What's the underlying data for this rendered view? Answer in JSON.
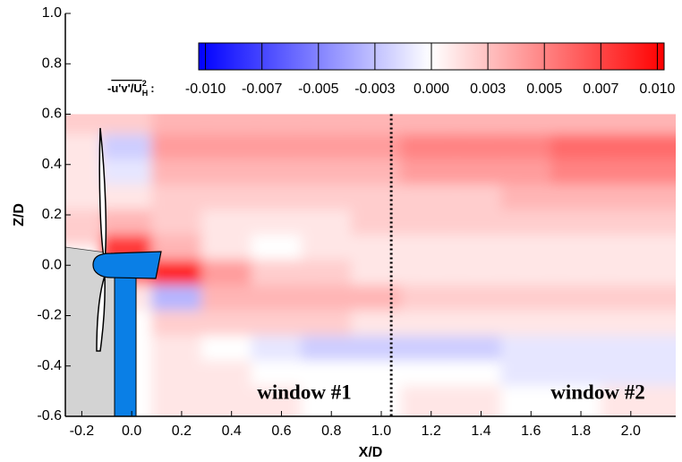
{
  "chart_data": {
    "type": "heatmap",
    "x_label": "X/D",
    "y_label": "Z/D",
    "xlim": [
      -0.266,
      2.18
    ],
    "ylim": [
      -0.6,
      1.0
    ],
    "xticks": [
      {
        "value": -0.2,
        "label": "-0.2"
      },
      {
        "value": 0,
        "label": "0.0"
      },
      {
        "value": 0.2,
        "label": "0.2"
      },
      {
        "value": 0.4,
        "label": "0.4"
      },
      {
        "value": 0.6,
        "label": "0.6"
      },
      {
        "value": 0.8,
        "label": "0.8"
      },
      {
        "value": 1.0,
        "label": "1.0"
      },
      {
        "value": 1.2,
        "label": "1.2"
      },
      {
        "value": 1.4,
        "label": "1.4"
      },
      {
        "value": 1.6,
        "label": "1.6"
      },
      {
        "value": 1.8,
        "label": "1.8"
      },
      {
        "value": 2.0,
        "label": "2.0"
      }
    ],
    "yticks": [
      {
        "value": -0.6,
        "label": "-0.6"
      },
      {
        "value": -0.4,
        "label": "-0.4"
      },
      {
        "value": -0.2,
        "label": "-0.2"
      },
      {
        "value": 0,
        "label": "0.0"
      },
      {
        "value": 0.2,
        "label": "0.2"
      },
      {
        "value": 0.4,
        "label": "0.4"
      },
      {
        "value": 0.6,
        "label": "0.6"
      },
      {
        "value": 0.8,
        "label": "0.8"
      },
      {
        "value": 1.0,
        "label": "1.0"
      }
    ],
    "field_ylim": [
      -0.6,
      0.6
    ],
    "colorbar_label": {
      "prefix": "-",
      "main": "u'v'/U",
      "sup": "2",
      "sub": "H",
      "suffix": ":"
    },
    "clim": [
      -0.0103,
      0.0103
    ],
    "colorbar_ticks": [
      {
        "value": -0.01,
        "label": "-0.010"
      },
      {
        "value": -0.0075,
        "label": "-0.007"
      },
      {
        "value": -0.005,
        "label": "-0.005"
      },
      {
        "value": -0.0025,
        "label": "-0.003"
      },
      {
        "value": 0,
        "label": "0.000"
      },
      {
        "value": 0.0025,
        "label": "0.003"
      },
      {
        "value": 0.005,
        "label": "0.005"
      },
      {
        "value": 0.0075,
        "label": "0.007"
      },
      {
        "value": 0.01,
        "label": "0.010"
      }
    ],
    "colors": {
      "low": "#0000ff",
      "mid": "#ffffff",
      "high": "#ff0000"
    },
    "divider_x": 1.04,
    "annotations": [
      "window #1",
      "window #2"
    ],
    "x": [
      -0.2,
      0.0,
      0.2,
      0.4,
      0.6,
      0.8,
      1.0,
      1.2,
      1.4,
      1.6,
      1.8,
      2.0
    ],
    "y": [
      0.55,
      0.45,
      0.35,
      0.25,
      0.15,
      0.05,
      -0.05,
      -0.15,
      -0.25,
      -0.35,
      -0.45,
      -0.55
    ],
    "z": [
      [
        0.002,
        0.002,
        0.003,
        0.003,
        0.003,
        0.003,
        0.003,
        0.003,
        0.003,
        0.003,
        0.003,
        0.003
      ],
      [
        0.001,
        -0.002,
        0.004,
        0.004,
        0.004,
        0.004,
        0.004,
        0.005,
        0.005,
        0.005,
        0.006,
        0.006
      ],
      [
        0.001,
        -0.001,
        0.003,
        0.003,
        0.003,
        0.003,
        0.003,
        0.004,
        0.004,
        0.004,
        0.005,
        0.005
      ],
      [
        0.001,
        0.001,
        0.002,
        0.002,
        0.002,
        0.002,
        0.002,
        0.002,
        0.002,
        0.003,
        0.003,
        0.003
      ],
      [
        0.002,
        0.003,
        0.002,
        0.001,
        0.001,
        0.001,
        0.002,
        0.002,
        0.002,
        0.002,
        0.002,
        0.002
      ],
      [
        null,
        0.008,
        0.003,
        0.001,
        0.0,
        0.001,
        0.001,
        0.001,
        0.001,
        0.001,
        0.001,
        0.001
      ],
      [
        null,
        0.006,
        0.009,
        0.004,
        0.002,
        0.002,
        0.001,
        0.001,
        0.001,
        0.001,
        0.001,
        0.001
      ],
      [
        null,
        0.001,
        -0.003,
        0.003,
        0.003,
        0.003,
        0.003,
        0.002,
        0.002,
        0.002,
        0.002,
        0.002
      ],
      [
        null,
        0.0,
        0.002,
        0.002,
        0.002,
        0.002,
        0.001,
        0.001,
        0.001,
        0.001,
        0.001,
        0.001
      ],
      [
        null,
        0.0,
        0.001,
        0.0,
        -0.001,
        -0.002,
        -0.002,
        -0.002,
        -0.002,
        -0.001,
        -0.001,
        -0.001
      ],
      [
        null,
        0.0,
        0.001,
        0.001,
        0.0,
        0.0,
        0.0,
        0.0,
        0.0,
        -0.001,
        -0.001,
        -0.001
      ],
      [
        null,
        0.0,
        0.001,
        0.001,
        0.001,
        0.0,
        0.0,
        0.001,
        0.001,
        0.0,
        0.0,
        0.001
      ]
    ]
  }
}
